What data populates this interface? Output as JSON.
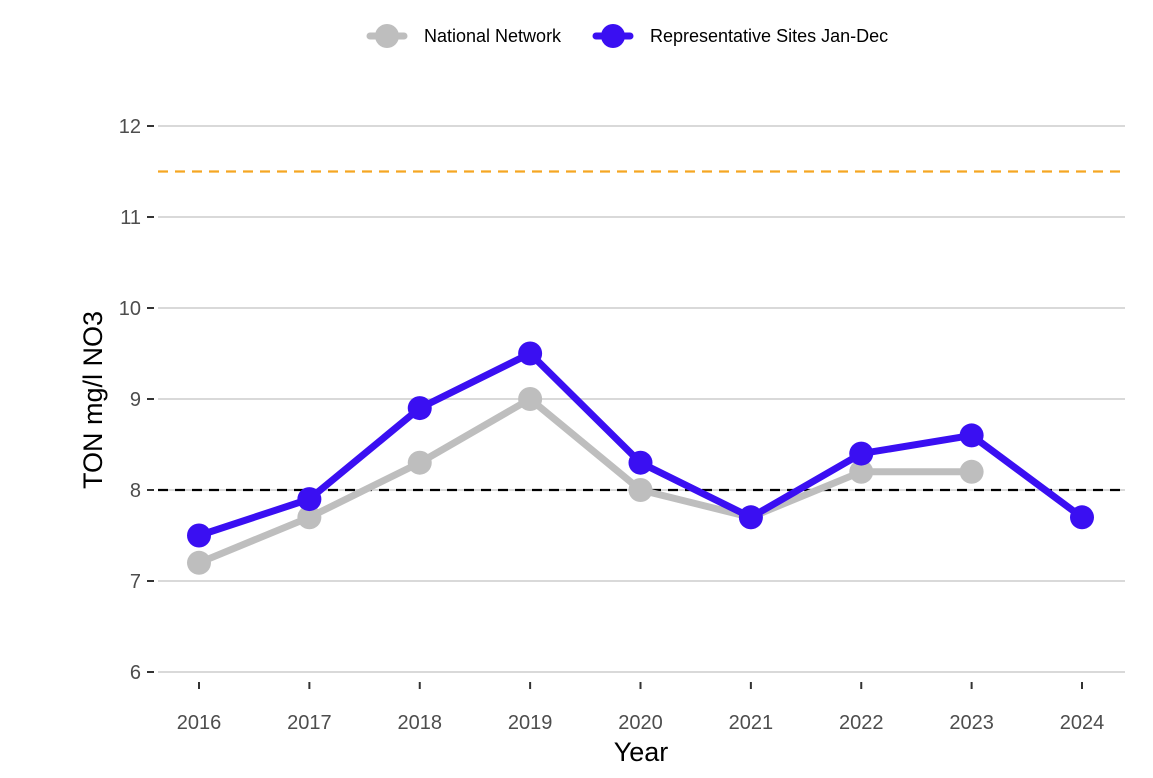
{
  "chart_data": {
    "type": "line",
    "title": "",
    "xlabel": "Year",
    "ylabel": "TON mg/l NO3",
    "x": [
      2016,
      2017,
      2018,
      2019,
      2020,
      2021,
      2022,
      2023,
      2024
    ],
    "xticks": [
      "2016",
      "2017",
      "2018",
      "2019",
      "2020",
      "2021",
      "2022",
      "2023",
      "2024"
    ],
    "yticks": [
      "6",
      "7",
      "8",
      "9",
      "10",
      "11",
      "12"
    ],
    "ylim": [
      5.95,
      12.3
    ],
    "grid": true,
    "legend_position": "top",
    "series": [
      {
        "name": "National Network",
        "color": "#bebebe",
        "values": [
          7.2,
          7.7,
          8.3,
          9.0,
          8.0,
          7.7,
          8.2,
          8.2,
          null
        ]
      },
      {
        "name": "Representative Sites Jan-Dec",
        "color": "#3a0ff2",
        "values": [
          7.5,
          7.9,
          8.9,
          9.5,
          8.3,
          7.7,
          8.4,
          8.6,
          7.7
        ]
      }
    ],
    "reference_lines": [
      {
        "y": 8.0,
        "color": "#000000",
        "style": "dashed"
      },
      {
        "y": 11.5,
        "color": "#f5a623",
        "style": "dashed"
      }
    ]
  }
}
